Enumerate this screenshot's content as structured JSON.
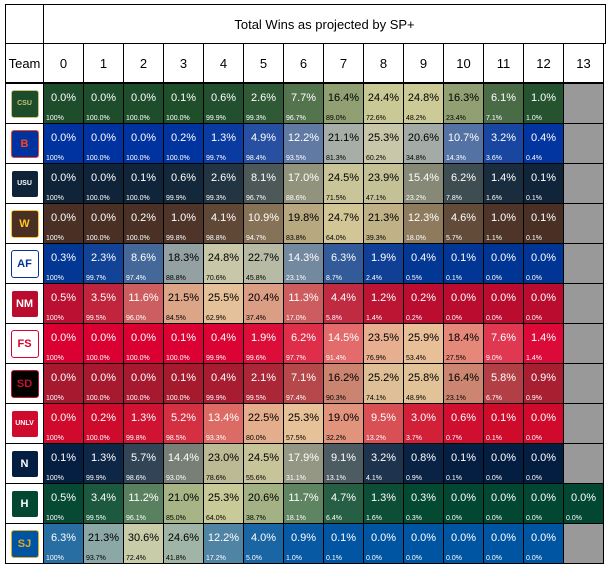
{
  "chart_data": {
    "type": "table",
    "title": "Total Wins as projected by SP+",
    "row_header": "Team",
    "columns": [
      "0",
      "1",
      "2",
      "3",
      "4",
      "5",
      "6",
      "7",
      "8",
      "9",
      "10",
      "11",
      "12",
      "13"
    ],
    "rows": [
      {
        "team": "Colorado State",
        "color": "#1e4d2b",
        "pct": [
          "0.0%",
          "0.0%",
          "0.0%",
          "0.1%",
          "0.6%",
          "2.6%",
          "7.7%",
          "16.4%",
          "24.4%",
          "24.8%",
          "16.3%",
          "6.1%",
          "1.0%",
          null
        ],
        "cum": [
          "100%",
          "100.0%",
          "100.0%",
          "100.0%",
          "99.9%",
          "99.3%",
          "96.7%",
          "89.0%",
          "72.6%",
          "48.2%",
          "23.4%",
          "7.1%",
          "1.0%",
          null
        ]
      },
      {
        "team": "Boise State",
        "color": "#0033a0",
        "pct": [
          "0.0%",
          "0.0%",
          "0.0%",
          "0.2%",
          "1.3%",
          "4.9%",
          "12.2%",
          "21.1%",
          "25.3%",
          "20.6%",
          "10.7%",
          "3.2%",
          "0.4%",
          null
        ],
        "cum": [
          "100%",
          "100.0%",
          "100.0%",
          "100.0%",
          "99.7%",
          "98.4%",
          "93.5%",
          "81.3%",
          "60.2%",
          "34.8%",
          "14.3%",
          "3.6%",
          "0.4%",
          null
        ]
      },
      {
        "team": "Utah State",
        "color": "#0f2439",
        "pct": [
          "0.0%",
          "0.0%",
          "0.1%",
          "0.6%",
          "2.6%",
          "8.1%",
          "17.0%",
          "24.5%",
          "23.9%",
          "15.4%",
          "6.2%",
          "1.4%",
          "0.1%",
          null
        ],
        "cum": [
          "100%",
          "100.0%",
          "100.0%",
          "99.9%",
          "99.3%",
          "96.7%",
          "88.6%",
          "71.5%",
          "47.1%",
          "23.2%",
          "7.8%",
          "1.6%",
          "0.1%",
          null
        ]
      },
      {
        "team": "Wyoming",
        "color": "#492f24",
        "pct": [
          "0.0%",
          "0.0%",
          "0.2%",
          "1.0%",
          "4.1%",
          "10.9%",
          "19.8%",
          "24.7%",
          "21.3%",
          "12.3%",
          "4.6%",
          "1.0%",
          "0.1%",
          null
        ],
        "cum": [
          "100%",
          "100.0%",
          "100.0%",
          "99.8%",
          "98.8%",
          "94.7%",
          "83.8%",
          "64.0%",
          "39.3%",
          "18.0%",
          "5.7%",
          "1.1%",
          "0.1%",
          null
        ]
      },
      {
        "team": "Air Force",
        "color": "#003594",
        "pct": [
          "0.3%",
          "2.3%",
          "8.6%",
          "18.3%",
          "24.8%",
          "22.7%",
          "14.3%",
          "6.3%",
          "1.9%",
          "0.4%",
          "0.1%",
          "0.0%",
          "0.0%",
          null
        ],
        "cum": [
          "100%",
          "99.7%",
          "97.4%",
          "88.8%",
          "70.6%",
          "45.8%",
          "23.1%",
          "8.7%",
          "2.4%",
          "0.5%",
          "0.1%",
          "0.0%",
          "0.0%",
          null
        ]
      },
      {
        "team": "New Mexico",
        "color": "#ba0c2f",
        "pct": [
          "0.5%",
          "3.5%",
          "11.6%",
          "21.5%",
          "25.5%",
          "20.4%",
          "11.3%",
          "4.4%",
          "1.2%",
          "0.2%",
          "0.0%",
          "0.0%",
          "0.0%",
          null
        ],
        "cum": [
          "100%",
          "99.5%",
          "96.0%",
          "84.5%",
          "62.9%",
          "37.4%",
          "17.0%",
          "5.8%",
          "1.4%",
          "0.2%",
          "0.0%",
          "0.0%",
          "0.0%",
          null
        ]
      },
      {
        "team": "Fresno State",
        "color": "#db0032",
        "pct": [
          "0.0%",
          "0.0%",
          "0.0%",
          "0.1%",
          "0.4%",
          "1.9%",
          "6.2%",
          "14.5%",
          "23.5%",
          "25.9%",
          "18.4%",
          "7.6%",
          "1.4%",
          null
        ],
        "cum": [
          "100%",
          "100.0%",
          "100.0%",
          "100.0%",
          "99.9%",
          "99.6%",
          "97.7%",
          "91.4%",
          "76.9%",
          "53.4%",
          "27.5%",
          "9.0%",
          "1.4%",
          null
        ]
      },
      {
        "team": "San Diego State",
        "color": "#a6192e",
        "pct": [
          "0.0%",
          "0.0%",
          "0.0%",
          "0.1%",
          "0.4%",
          "2.1%",
          "7.1%",
          "16.2%",
          "25.2%",
          "25.8%",
          "16.4%",
          "5.8%",
          "0.9%",
          null
        ],
        "cum": [
          "100%",
          "100.0%",
          "100.0%",
          "100.0%",
          "99.9%",
          "99.5%",
          "97.4%",
          "90.3%",
          "74.1%",
          "48.9%",
          "23.1%",
          "6.7%",
          "0.9%",
          null
        ]
      },
      {
        "team": "UNLV",
        "color": "#cf0a2c",
        "pct": [
          "0.0%",
          "0.2%",
          "1.3%",
          "5.2%",
          "13.4%",
          "22.5%",
          "25.3%",
          "19.0%",
          "9.5%",
          "3.0%",
          "0.6%",
          "0.1%",
          "0.0%",
          null
        ],
        "cum": [
          "100%",
          "100.0%",
          "99.8%",
          "98.5%",
          "93.3%",
          "80.0%",
          "57.5%",
          "32.2%",
          "13.2%",
          "3.7%",
          "0.7%",
          "0.1%",
          "0.0%",
          null
        ]
      },
      {
        "team": "Nevada",
        "color": "#041e42",
        "pct": [
          "0.1%",
          "1.3%",
          "5.7%",
          "14.4%",
          "23.0%",
          "24.5%",
          "17.9%",
          "9.1%",
          "3.2%",
          "0.8%",
          "0.1%",
          "0.0%",
          "0.0%",
          null
        ],
        "cum": [
          "100%",
          "99.9%",
          "98.6%",
          "93.0%",
          "78.6%",
          "55.6%",
          "31.1%",
          "13.1%",
          "4.1%",
          "0.9%",
          "0.1%",
          "0.0%",
          "0.0%",
          null
        ]
      },
      {
        "team": "Hawaii",
        "color": "#024731",
        "pct": [
          "0.5%",
          "3.4%",
          "11.2%",
          "21.0%",
          "25.3%",
          "20.6%",
          "11.7%",
          "4.7%",
          "1.3%",
          "0.3%",
          "0.0%",
          "0.0%",
          "0.0%",
          "0.0%"
        ],
        "cum": [
          "100%",
          "99.5%",
          "96.1%",
          "85.0%",
          "64.0%",
          "38.7%",
          "18.1%",
          "6.4%",
          "1.6%",
          "0.3%",
          "0.0%",
          "0.0%",
          "0.0%",
          "0.0%"
        ]
      },
      {
        "team": "San Jose State",
        "color": "#0055a2",
        "pct": [
          "6.3%",
          "21.3%",
          "30.6%",
          "24.6%",
          "12.2%",
          "4.0%",
          "0.9%",
          "0.1%",
          "0.0%",
          "0.0%",
          "0.0%",
          "0.0%",
          "0.0%",
          null
        ],
        "cum": [
          "100%",
          "93.7%",
          "72.4%",
          "41.8%",
          "17.2%",
          "5.0%",
          "1.0%",
          "0.1%",
          "0.0%",
          "0.0%",
          "0.0%",
          "0.0%",
          "0.0%",
          null
        ]
      }
    ]
  },
  "logos": [
    {
      "name": "colorado-state-logo",
      "mark": "CSU",
      "bg": "#1e4d2b",
      "fg": "#c8c372"
    },
    {
      "name": "boise-state-logo",
      "mark": "B",
      "bg": "#0033a0",
      "fg": "#fa4616"
    },
    {
      "name": "utah-state-logo",
      "mark": "USU",
      "bg": "#0f2439",
      "fg": "#ffffff"
    },
    {
      "name": "wyoming-logo",
      "mark": "W",
      "bg": "#492f24",
      "fg": "#ffc425"
    },
    {
      "name": "air-force-logo",
      "mark": "AF",
      "bg": "#ffffff",
      "fg": "#003594"
    },
    {
      "name": "new-mexico-logo",
      "mark": "NM",
      "bg": "#ba0c2f",
      "fg": "#ffffff"
    },
    {
      "name": "fresno-state-logo",
      "mark": "FS",
      "bg": "#ffffff",
      "fg": "#db0032"
    },
    {
      "name": "san-diego-state-logo",
      "mark": "SD",
      "bg": "#000000",
      "fg": "#c41230"
    },
    {
      "name": "unlv-logo",
      "mark": "UNLV",
      "bg": "#cf0a2c",
      "fg": "#ffffff"
    },
    {
      "name": "nevada-logo",
      "mark": "N",
      "bg": "#041e42",
      "fg": "#ffffff"
    },
    {
      "name": "hawaii-logo",
      "mark": "H",
      "bg": "#024731",
      "fg": "#ffffff"
    },
    {
      "name": "san-jose-state-logo",
      "mark": "SJ",
      "bg": "#0055a2",
      "fg": "#e5a823"
    }
  ],
  "colors": {
    "not_applicable": "#999999",
    "lightest_text_cells": [
      "#c7c282",
      "#e8d9a6",
      "#f4f4f4",
      "#d7d7d7",
      "#ffffff"
    ]
  }
}
